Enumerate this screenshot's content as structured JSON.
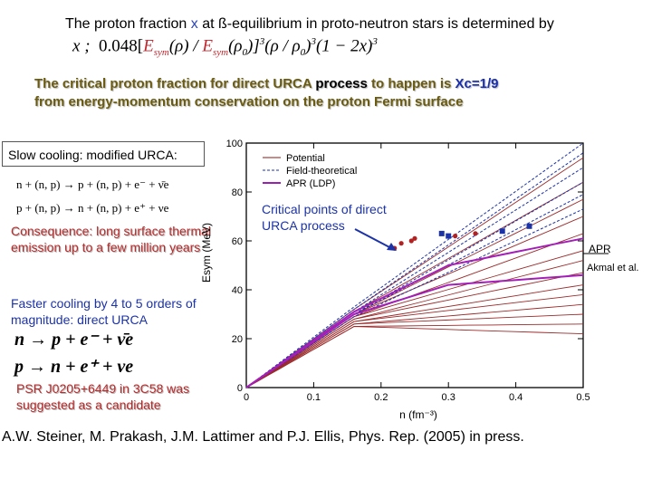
{
  "headline": {
    "before_x": "The proton fraction ",
    "x": "x",
    "after_x": " at ß-equilibrium in proto-neutron stars is determined by"
  },
  "formula": {
    "lhs": "x",
    "sep": ";",
    "coef": "0.048[",
    "num": "E",
    "num_sub": "sym",
    "num_arg": "(ρ)",
    "slash": " / ",
    "den": "E",
    "den_sub": "sym",
    "den_arg": "(ρ",
    "den_arg_sub": "0",
    "den_arg_end": ")",
    "pow3": "]",
    "sup3": "3",
    "rho_ratio": "(ρ / ρ",
    "rho_ratio_sub": "0",
    "rho_ratio_end": ")",
    "sup3b": "3",
    "tail": "(1 − 2x)",
    "sup3c": "3"
  },
  "urca": {
    "line1_pre": "The critical proton fraction for direct URCA ",
    "line1_hl": "process",
    "line1_mid": " to happen is ",
    "xc": "Χc",
    "xc_val": "=1/9",
    "line2": "from energy-momentum conservation on the proton Fermi surface"
  },
  "slow": {
    "title": "Slow cooling: modified URCA:",
    "eq1": "n + (n, p) → p + (n, p) + e⁻ + ν̄e",
    "eq2": "p + (n, p) → n + (n, p) + e⁺ + νe",
    "consequence": "Consequence: long surface thermal emission up to a few million years"
  },
  "fast": {
    "title": "Faster cooling by 4 to 5 orders of magnitude: direct URCA",
    "eq3": "n → p + e⁻ + ν̄e",
    "eq4": "p → n + e⁺ + νe",
    "psr": "PSR J0205+6449 in 3C58 was suggested as a candidate"
  },
  "critical_label": "Critical points of direct URCA process",
  "apr_label": "APR",
  "akmal_label": "Akmal et al.",
  "reference": "A.W. Steiner, M. Prakash, J.M. Lattimer and P.J. Ellis, Phys. Rep. (2005) in press.",
  "chart_data": {
    "type": "line",
    "xlabel": "n (fm⁻³)",
    "ylabel": "Esym (MeV)",
    "xlim": [
      0,
      0.5
    ],
    "ylim": [
      0,
      100
    ],
    "xticks": [
      "0",
      "0.1",
      "0.2",
      "0.3",
      "0.4",
      "0.5"
    ],
    "yticks": [
      "0",
      "20",
      "40",
      "60",
      "80",
      "100"
    ],
    "legend": [
      {
        "name": "Potential",
        "style": "solid",
        "color": "#8b1a1a"
      },
      {
        "name": "Field-theoretical",
        "style": "dashed",
        "color": "#1c33a8"
      },
      {
        "name": "APR (LDP)",
        "style": "solid",
        "color": "#9b1fb0"
      }
    ],
    "series": [
      {
        "name": "Potential 1",
        "group": "potential",
        "x": [
          0,
          0.16,
          0.5
        ],
        "y": [
          0,
          32,
          94
        ]
      },
      {
        "name": "Potential 2",
        "group": "potential",
        "x": [
          0,
          0.16,
          0.5
        ],
        "y": [
          0,
          31,
          84
        ]
      },
      {
        "name": "Potential 3",
        "group": "potential",
        "x": [
          0,
          0.16,
          0.5
        ],
        "y": [
          0,
          30,
          77
        ]
      },
      {
        "name": "Potential 4",
        "group": "potential",
        "x": [
          0,
          0.16,
          0.5
        ],
        "y": [
          0,
          30,
          70
        ]
      },
      {
        "name": "Potential 5",
        "group": "potential",
        "x": [
          0,
          0.16,
          0.5
        ],
        "y": [
          0,
          29,
          63
        ]
      },
      {
        "name": "Potential 6",
        "group": "potential",
        "x": [
          0,
          0.16,
          0.5
        ],
        "y": [
          0,
          29,
          56
        ]
      },
      {
        "name": "Potential 7",
        "group": "potential",
        "x": [
          0,
          0.16,
          0.5
        ],
        "y": [
          0,
          28,
          52
        ]
      },
      {
        "name": "Potential 8",
        "group": "potential",
        "x": [
          0,
          0.16,
          0.5
        ],
        "y": [
          0,
          28,
          47
        ]
      },
      {
        "name": "Potential 9",
        "group": "potential",
        "x": [
          0,
          0.16,
          0.5
        ],
        "y": [
          0,
          27,
          42
        ]
      },
      {
        "name": "Potential 10",
        "group": "potential",
        "x": [
          0,
          0.16,
          0.5
        ],
        "y": [
          0,
          27,
          38
        ]
      },
      {
        "name": "Potential 11",
        "group": "potential",
        "x": [
          0,
          0.16,
          0.5
        ],
        "y": [
          0,
          26,
          34
        ]
      },
      {
        "name": "Potential 12",
        "group": "potential",
        "x": [
          0,
          0.16,
          0.5
        ],
        "y": [
          0,
          26,
          30
        ]
      },
      {
        "name": "Potential 13",
        "group": "potential",
        "x": [
          0,
          0.16,
          0.5
        ],
        "y": [
          0,
          25,
          26
        ]
      },
      {
        "name": "Potential 14",
        "group": "potential",
        "x": [
          0,
          0.16,
          0.5
        ],
        "y": [
          0,
          25,
          22
        ]
      },
      {
        "name": "Field-theoretical 1",
        "group": "field",
        "x": [
          0,
          0.16,
          0.5
        ],
        "y": [
          0,
          33,
          100
        ]
      },
      {
        "name": "Field-theoretical 2",
        "group": "field",
        "x": [
          0,
          0.16,
          0.5
        ],
        "y": [
          0,
          32,
          96
        ]
      },
      {
        "name": "Field-theoretical 3",
        "group": "field",
        "x": [
          0,
          0.16,
          0.5
        ],
        "y": [
          0,
          31,
          90
        ]
      },
      {
        "name": "Field-theoretical 4",
        "group": "field",
        "x": [
          0,
          0.16,
          0.5
        ],
        "y": [
          0,
          30,
          84
        ]
      },
      {
        "name": "Field-theoretical 5",
        "group": "field",
        "x": [
          0,
          0.16,
          0.5
        ],
        "y": [
          0,
          30,
          79
        ]
      },
      {
        "name": "Field-theoretical 6",
        "group": "field",
        "x": [
          0,
          0.16,
          0.5
        ],
        "y": [
          0,
          29,
          73
        ]
      },
      {
        "name": "APR (LDP) 1",
        "group": "apr",
        "x": [
          0,
          0.16,
          0.3,
          0.5
        ],
        "y": [
          0,
          31,
          50,
          61
        ]
      },
      {
        "name": "APR (LDP) 2",
        "group": "apr",
        "x": [
          0,
          0.16,
          0.3,
          0.5
        ],
        "y": [
          0,
          30,
          42,
          46
        ]
      }
    ],
    "critical_points": [
      {
        "x": 0.22,
        "y": 57,
        "color": "#b22222"
      },
      {
        "x": 0.23,
        "y": 59,
        "color": "#b22222"
      },
      {
        "x": 0.245,
        "y": 60,
        "color": "#b22222"
      },
      {
        "x": 0.25,
        "y": 61,
        "color": "#b22222"
      },
      {
        "x": 0.29,
        "y": 63,
        "color": "#1c33a8"
      },
      {
        "x": 0.3,
        "y": 62,
        "color": "#1c33a8"
      },
      {
        "x": 0.31,
        "y": 62,
        "color": "#b22222"
      },
      {
        "x": 0.34,
        "y": 63,
        "color": "#b22222"
      },
      {
        "x": 0.38,
        "y": 64,
        "color": "#1c33a8"
      },
      {
        "x": 0.42,
        "y": 66,
        "color": "#1c33a8"
      }
    ]
  }
}
